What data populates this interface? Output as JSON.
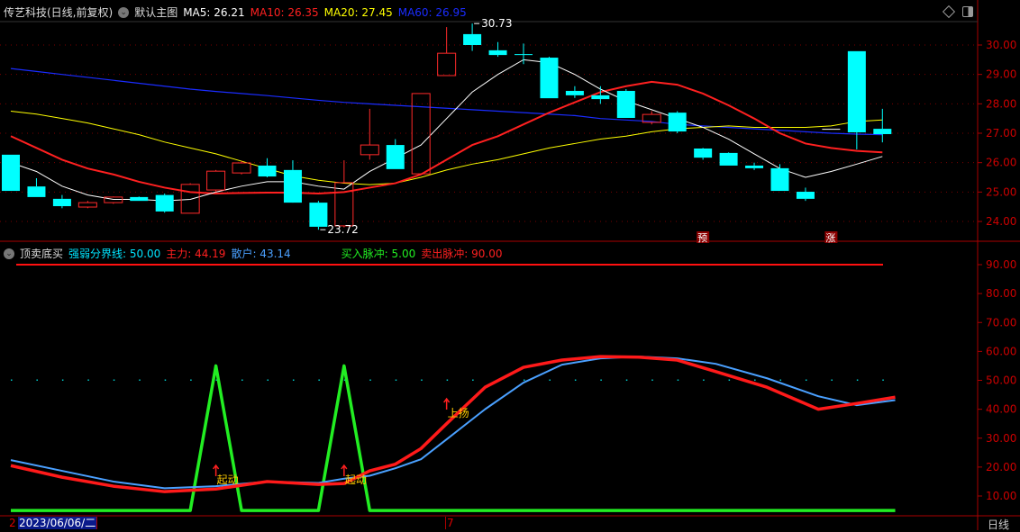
{
  "header": {
    "title": "传艺科技(日线,前复权)",
    "template": "默认主图",
    "ma": [
      {
        "label": "MA5: 26.21",
        "color": "#ffffff"
      },
      {
        "label": "MA10: 26.35",
        "color": "#ff2020"
      },
      {
        "label": "MA20: 27.45",
        "color": "#ffff00"
      },
      {
        "label": "MA60: 26.95",
        "color": "#1a2cff"
      }
    ]
  },
  "indicator_header": {
    "name": "顶卖底买",
    "items": [
      {
        "label": "强弱分界线: 50.00",
        "color": "#00e5ff"
      },
      {
        "label": "主力: 44.19",
        "color": "#ff2020"
      },
      {
        "label": "散户: 43.14",
        "color": "#4aa0ff"
      },
      {
        "label": "买入脉冲: 5.00",
        "color": "#22ee22"
      },
      {
        "label": "卖出脉冲: 90.00",
        "color": "#ff2020"
      }
    ]
  },
  "bottom": {
    "date_left_tick": "2",
    "selected_date": "2023/06/06/二",
    "date_mid_tick": "7",
    "period": "日线"
  },
  "chart_data": [
    {
      "type": "candlestick",
      "ylim": [
        23.4,
        30.8
      ],
      "yticks": [
        "30.00",
        "29.00",
        "28.00",
        "27.00",
        "26.00",
        "25.00",
        "24.00"
      ],
      "candles": [
        [
          26.27,
          26.27,
          25.04,
          25.04
        ],
        [
          25.19,
          25.47,
          24.83,
          24.83
        ],
        [
          24.77,
          24.9,
          24.45,
          24.52
        ],
        [
          24.49,
          24.7,
          24.45,
          24.64
        ],
        [
          24.64,
          24.85,
          24.6,
          24.83
        ],
        [
          24.83,
          24.85,
          24.7,
          24.7
        ],
        [
          24.9,
          24.95,
          24.3,
          24.34
        ],
        [
          24.28,
          25.3,
          24.28,
          25.26
        ],
        [
          25.07,
          25.75,
          25.0,
          25.71
        ],
        [
          25.65,
          26.05,
          25.6,
          25.99
        ],
        [
          25.9,
          26.15,
          25.5,
          25.53
        ],
        [
          25.75,
          26.08,
          24.7,
          24.64
        ],
        [
          24.64,
          24.7,
          23.72,
          23.82
        ],
        [
          23.85,
          26.08,
          23.8,
          25.32
        ],
        [
          26.27,
          27.83,
          26.1,
          26.6
        ],
        [
          26.6,
          26.8,
          25.78,
          25.78
        ],
        [
          25.62,
          28.35,
          25.6,
          28.35
        ],
        [
          28.96,
          30.61,
          28.96,
          29.72
        ],
        [
          30.37,
          30.73,
          29.8,
          30.0
        ],
        [
          29.82,
          30.1,
          29.6,
          29.66
        ],
        [
          29.69,
          30.05,
          29.35,
          29.69
        ],
        [
          29.57,
          29.6,
          28.19,
          28.19
        ],
        [
          28.44,
          28.6,
          28.2,
          28.29
        ],
        [
          28.29,
          28.6,
          28.0,
          28.16
        ],
        [
          28.44,
          28.5,
          27.52,
          27.52
        ],
        [
          27.37,
          27.75,
          27.3,
          27.64
        ],
        [
          27.7,
          27.75,
          27.0,
          27.06
        ],
        [
          26.48,
          26.5,
          26.1,
          26.17
        ],
        [
          26.33,
          26.35,
          25.9,
          25.9
        ],
        [
          25.9,
          26.0,
          25.75,
          25.81
        ],
        [
          25.81,
          25.95,
          25.04,
          25.04
        ],
        [
          25.01,
          25.15,
          24.7,
          24.77
        ],
        [
          27.15,
          27.15,
          27.15,
          27.15
        ],
        [
          29.79,
          29.79,
          26.45,
          27.03
        ],
        [
          27.15,
          27.83,
          26.69,
          26.97
        ]
      ],
      "ma5": [
        26.0,
        25.7,
        25.2,
        24.9,
        24.75,
        24.75,
        24.7,
        24.75,
        25.0,
        25.2,
        25.35,
        25.35,
        25.2,
        25.1,
        25.7,
        26.15,
        26.6,
        27.5,
        28.4,
        29.0,
        29.5,
        29.4,
        29.0,
        28.5,
        28.1,
        27.8,
        27.5,
        27.2,
        26.8,
        26.3,
        25.8,
        25.5,
        25.7,
        25.95,
        26.21
      ],
      "ma10": [
        26.9,
        26.5,
        26.1,
        25.8,
        25.6,
        25.35,
        25.15,
        25.0,
        24.95,
        24.97,
        24.98,
        24.98,
        24.95,
        25.0,
        25.15,
        25.3,
        25.6,
        26.1,
        26.6,
        26.9,
        27.3,
        27.7,
        28.05,
        28.4,
        28.6,
        28.75,
        28.65,
        28.35,
        27.95,
        27.5,
        27.0,
        26.65,
        26.5,
        26.4,
        26.35
      ],
      "ma20": [
        27.75,
        27.65,
        27.5,
        27.35,
        27.15,
        26.95,
        26.7,
        26.5,
        26.3,
        26.05,
        25.8,
        25.55,
        25.4,
        25.3,
        25.25,
        25.3,
        25.5,
        25.75,
        25.95,
        26.1,
        26.3,
        26.5,
        26.65,
        26.8,
        26.9,
        27.05,
        27.15,
        27.2,
        27.25,
        27.2,
        27.2,
        27.2,
        27.25,
        27.4,
        27.45
      ],
      "ma60": [
        29.2,
        29.1,
        29.0,
        28.9,
        28.8,
        28.7,
        28.6,
        28.5,
        28.42,
        28.35,
        28.28,
        28.2,
        28.12,
        28.05,
        28.0,
        27.95,
        27.9,
        27.85,
        27.8,
        27.75,
        27.7,
        27.65,
        27.6,
        27.5,
        27.45,
        27.4,
        27.3,
        27.25,
        27.2,
        27.15,
        27.1,
        27.05,
        27.0,
        26.97,
        26.95
      ],
      "annotations": [
        {
          "text": "30.73",
          "index": 18
        },
        {
          "text": "23.72",
          "index": 12
        }
      ],
      "markers": [
        {
          "text": "预",
          "index": 27
        },
        {
          "text": "涨",
          "index": 32
        }
      ]
    },
    {
      "type": "line",
      "ylim": [
        3,
        97
      ],
      "yticks": [
        "90.00",
        "80.00",
        "70.00",
        "60.00",
        "50.00",
        "40.00",
        "30.00",
        "20.00",
        "10.00"
      ],
      "strength_line": 50,
      "sell_pulse": 90,
      "main_force": [
        [
          0,
          20.5
        ],
        [
          2,
          16.5
        ],
        [
          4,
          13.4
        ],
        [
          6,
          11.5
        ],
        [
          8,
          12.4
        ],
        [
          10,
          15
        ],
        [
          12,
          14
        ],
        [
          13,
          14.3
        ],
        [
          14,
          18.7
        ],
        [
          15,
          21
        ],
        [
          16,
          26.4
        ],
        [
          17,
          35
        ],
        [
          18.5,
          47.6
        ],
        [
          20,
          54.5
        ],
        [
          21.5,
          57
        ],
        [
          23,
          58.2
        ],
        [
          24.5,
          58
        ],
        [
          26,
          57
        ],
        [
          27.5,
          53
        ],
        [
          29.5,
          47.6
        ],
        [
          31.5,
          40
        ],
        [
          33,
          42
        ],
        [
          34.5,
          44.19
        ]
      ],
      "retail": [
        [
          0,
          22.4
        ],
        [
          2,
          18.7
        ],
        [
          4,
          15
        ],
        [
          6,
          12.7
        ],
        [
          8,
          13.4
        ],
        [
          10,
          15
        ],
        [
          12,
          14.5
        ],
        [
          13,
          16
        ],
        [
          14,
          17
        ],
        [
          15,
          19.6
        ],
        [
          16,
          22.7
        ],
        [
          17,
          29.6
        ],
        [
          18.5,
          40
        ],
        [
          20,
          49.2
        ],
        [
          21.5,
          55.4
        ],
        [
          23,
          57.6
        ],
        [
          24.5,
          58.2
        ],
        [
          26,
          57.6
        ],
        [
          27.5,
          55.7
        ],
        [
          29.5,
          50.7
        ],
        [
          31.5,
          44.5
        ],
        [
          33,
          41.4
        ],
        [
          34.5,
          43.14
        ]
      ],
      "buy_pulse": [
        [
          0,
          5
        ],
        [
          7,
          5
        ],
        [
          8,
          55
        ],
        [
          9,
          5
        ],
        [
          12,
          5
        ],
        [
          13,
          55
        ],
        [
          14,
          5
        ],
        [
          34.5,
          5
        ]
      ],
      "annotations": [
        {
          "text": "起动",
          "index": 8,
          "value": 15
        },
        {
          "text": "起动",
          "index": 13,
          "value": 15
        },
        {
          "text": "上扬",
          "index": 17,
          "value": 38
        }
      ]
    }
  ]
}
